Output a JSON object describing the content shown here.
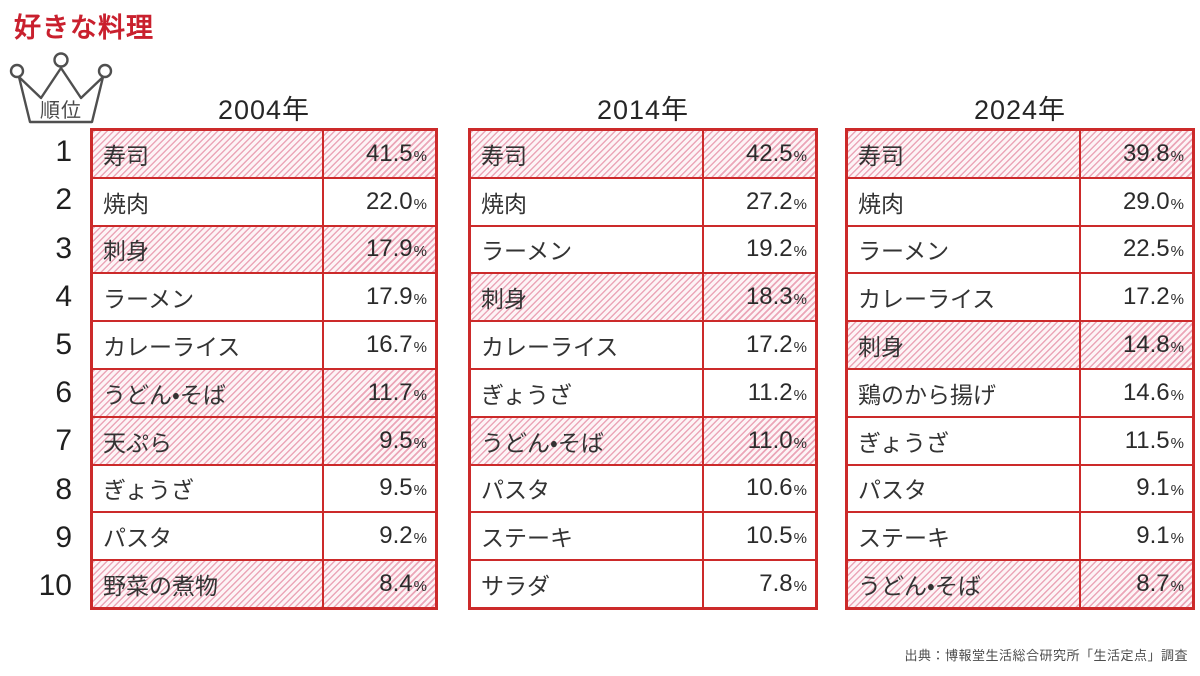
{
  "title": "好きな料理",
  "rank_badge": {
    "label": "順位",
    "icon": "crown-icon"
  },
  "ranks": [
    "1",
    "2",
    "3",
    "4",
    "5",
    "6",
    "7",
    "8",
    "9",
    "10"
  ],
  "source": "出典：博報堂生活総合研究所「生活定点」調査",
  "colors": {
    "accent_red": "#c9202e",
    "border_red": "#cc2a2a",
    "hatch_stripe": "#eba6b8",
    "hatch_bg": "#fdf4f6",
    "text_dark": "#333333"
  },
  "chart_data": {
    "type": "table",
    "title": "好きな料理",
    "rank_label": "順位",
    "percent_unit": "%",
    "source": "出典：博報堂生活総合研究所「生活定点」調査",
    "highlight_style": "pink-diagonal-hatch",
    "tables": [
      {
        "year": "2004年",
        "rows": [
          {
            "rank": 1,
            "dish": "寿司",
            "percent": "41.5",
            "highlighted": true
          },
          {
            "rank": 2,
            "dish": "焼肉",
            "percent": "22.0",
            "highlighted": false
          },
          {
            "rank": 3,
            "dish": "刺身",
            "percent": "17.9",
            "highlighted": true
          },
          {
            "rank": 4,
            "dish": "ラーメン",
            "percent": "17.9",
            "highlighted": false
          },
          {
            "rank": 5,
            "dish": "カレーライス",
            "percent": "16.7",
            "highlighted": false
          },
          {
            "rank": 6,
            "dish": "うどん・そば",
            "percent": "11.7",
            "highlighted": true
          },
          {
            "rank": 7,
            "dish": "天ぷら",
            "percent": "9.5",
            "highlighted": true
          },
          {
            "rank": 8,
            "dish": "ぎょうざ",
            "percent": "9.5",
            "highlighted": false
          },
          {
            "rank": 9,
            "dish": "パスタ",
            "percent": "9.2",
            "highlighted": false
          },
          {
            "rank": 10,
            "dish": "野菜の煮物",
            "percent": "8.4",
            "highlighted": true
          }
        ]
      },
      {
        "year": "2014年",
        "rows": [
          {
            "rank": 1,
            "dish": "寿司",
            "percent": "42.5",
            "highlighted": true
          },
          {
            "rank": 2,
            "dish": "焼肉",
            "percent": "27.2",
            "highlighted": false
          },
          {
            "rank": 3,
            "dish": "ラーメン",
            "percent": "19.2",
            "highlighted": false
          },
          {
            "rank": 4,
            "dish": "刺身",
            "percent": "18.3",
            "highlighted": true
          },
          {
            "rank": 5,
            "dish": "カレーライス",
            "percent": "17.2",
            "highlighted": false
          },
          {
            "rank": 6,
            "dish": "ぎょうざ",
            "percent": "11.2",
            "highlighted": false
          },
          {
            "rank": 7,
            "dish": "うどん・そば",
            "percent": "11.0",
            "highlighted": true
          },
          {
            "rank": 8,
            "dish": "パスタ",
            "percent": "10.6",
            "highlighted": false
          },
          {
            "rank": 9,
            "dish": "ステーキ",
            "percent": "10.5",
            "highlighted": false
          },
          {
            "rank": 10,
            "dish": "サラダ",
            "percent": "7.8",
            "highlighted": false
          }
        ]
      },
      {
        "year": "2024年",
        "rows": [
          {
            "rank": 1,
            "dish": "寿司",
            "percent": "39.8",
            "highlighted": true
          },
          {
            "rank": 2,
            "dish": "焼肉",
            "percent": "29.0",
            "highlighted": false
          },
          {
            "rank": 3,
            "dish": "ラーメン",
            "percent": "22.5",
            "highlighted": false
          },
          {
            "rank": 4,
            "dish": "カレーライス",
            "percent": "17.2",
            "highlighted": false
          },
          {
            "rank": 5,
            "dish": "刺身",
            "percent": "14.8",
            "highlighted": true
          },
          {
            "rank": 6,
            "dish": "鶏のから揚げ",
            "percent": "14.6",
            "highlighted": false
          },
          {
            "rank": 7,
            "dish": "ぎょうざ",
            "percent": "11.5",
            "highlighted": false
          },
          {
            "rank": 8,
            "dish": "パスタ",
            "percent": "9.1",
            "highlighted": false
          },
          {
            "rank": 9,
            "dish": "ステーキ",
            "percent": "9.1",
            "highlighted": false
          },
          {
            "rank": 10,
            "dish": "うどん・そば",
            "percent": "8.7",
            "highlighted": true
          }
        ]
      }
    ]
  }
}
